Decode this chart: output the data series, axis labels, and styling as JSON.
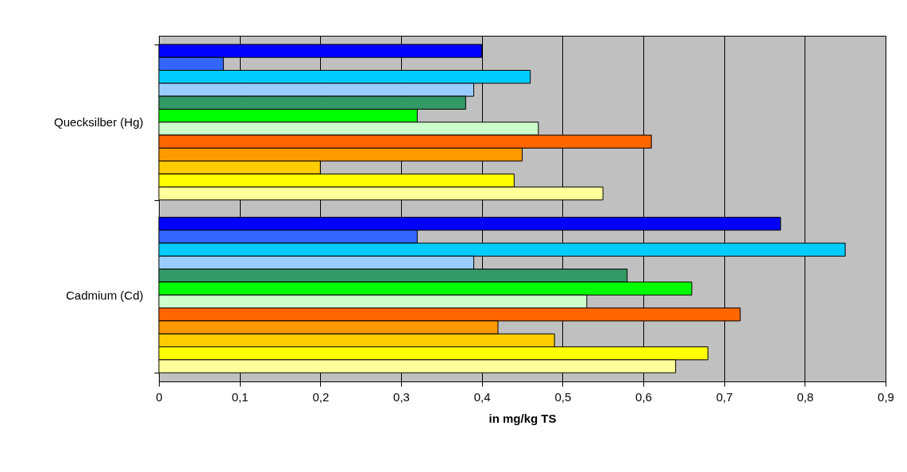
{
  "chart_data": {
    "type": "bar",
    "orientation": "horizontal",
    "xlabel": "in mg/kg TS",
    "categories": [
      "Quecksilber (Hg)",
      "Cadmium (Cd)"
    ],
    "series": [
      {
        "color": "#0000ff",
        "values": [
          0.4,
          0.77
        ]
      },
      {
        "color": "#3366ff",
        "values": [
          0.08,
          0.32
        ]
      },
      {
        "color": "#00ccff",
        "values": [
          0.46,
          0.85
        ]
      },
      {
        "color": "#99ccff",
        "values": [
          0.39,
          0.39
        ]
      },
      {
        "color": "#339966",
        "values": [
          0.38,
          0.58
        ]
      },
      {
        "color": "#00ff00",
        "values": [
          0.32,
          0.66
        ]
      },
      {
        "color": "#ccffcc",
        "values": [
          0.47,
          0.53
        ]
      },
      {
        "color": "#ff6600",
        "values": [
          0.61,
          0.72
        ]
      },
      {
        "color": "#ff9900",
        "values": [
          0.45,
          0.42
        ]
      },
      {
        "color": "#ffcc00",
        "values": [
          0.2,
          0.49
        ]
      },
      {
        "color": "#ffff00",
        "values": [
          0.44,
          0.68
        ]
      },
      {
        "color": "#ffff99",
        "values": [
          0.55,
          0.64
        ]
      }
    ],
    "xlim": [
      0,
      0.9
    ],
    "xticks": [
      0,
      {
        "value": 0.1,
        "label": "0,1"
      },
      {
        "value": 0.2,
        "label": "0,2"
      },
      {
        "value": 0.3,
        "label": "0,3"
      },
      {
        "value": 0.4,
        "label": "0,4"
      },
      {
        "value": 0.5,
        "label": "0,5"
      },
      {
        "value": 0.6,
        "label": "0,6"
      },
      {
        "value": 0.7,
        "label": "0,7"
      },
      {
        "value": 0.8,
        "label": "0,8"
      },
      {
        "value": 0.9,
        "label": "0,9"
      }
    ],
    "grid": "x",
    "legend": false
  }
}
